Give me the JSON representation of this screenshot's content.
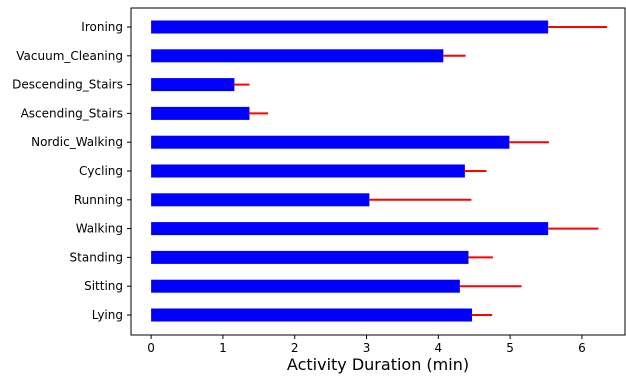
{
  "chart_data": {
    "type": "bar",
    "orientation": "horizontal",
    "title": "",
    "xlabel": "Activity Duration (min)",
    "ylabel": "",
    "categories": [
      "Lying",
      "Sitting",
      "Standing",
      "Walking",
      "Running",
      "Cycling",
      "Nordic_Walking",
      "Ascending_Stairs",
      "Descending_Stairs",
      "Vacuum_Cleaning",
      "Ironing"
    ],
    "values": [
      4.47,
      4.3,
      4.42,
      5.53,
      3.04,
      4.37,
      4.99,
      1.37,
      1.16,
      4.07,
      5.53
    ],
    "error_plus": [
      0.28,
      0.86,
      0.34,
      0.7,
      1.42,
      0.3,
      0.55,
      0.26,
      0.21,
      0.31,
      0.82
    ],
    "xlim": [
      -0.28,
      6.6
    ],
    "xticks": [
      0,
      1,
      2,
      3,
      4,
      5,
      6
    ],
    "grid": false,
    "bar_color": "#0000ff",
    "error_color": "#ff0000"
  }
}
